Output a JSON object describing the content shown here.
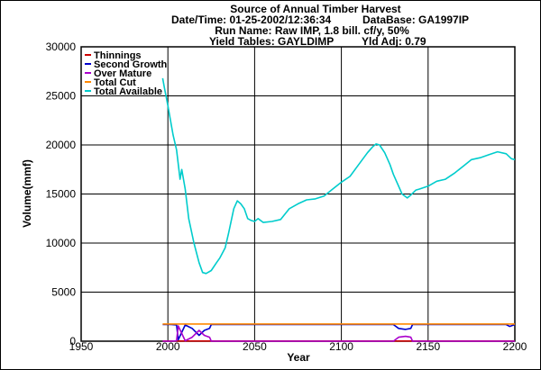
{
  "header": {
    "title": "Source of Annual Timber Harvest",
    "datetime": "Date/Time: 01-25-2002/12:36:34",
    "database": "DataBase: GA1997IP",
    "run_name": "Run Name: Raw IMP, 1.8 bill. cf/y, 50%",
    "yield_tables": "Yield Tables: GAYLDIMP",
    "yld_adj": "Yld Adj: 0.79"
  },
  "chart_data": {
    "type": "line",
    "title": "Source of Annual Timber Harvest",
    "xlabel": "Year",
    "ylabel": "Volume(mmf)",
    "xlim": [
      1950,
      2200
    ],
    "ylim": [
      0,
      30000
    ],
    "xticks": [
      1950,
      2000,
      2050,
      2100,
      2150,
      2200
    ],
    "yticks": [
      0,
      5000,
      10000,
      15000,
      20000,
      25000,
      30000
    ],
    "grid": true,
    "legend_position": "top-left",
    "series": [
      {
        "name": "Thinnings",
        "color": "#cc0000",
        "x": [
          1997,
          2200
        ],
        "y": [
          20,
          20
        ]
      },
      {
        "name": "Second Growth",
        "color": "#0000cc",
        "x": [
          1997,
          2002,
          2005,
          2006,
          2010,
          2014,
          2018,
          2021,
          2024,
          2025,
          2130,
          2133,
          2137,
          2140,
          2141,
          2195,
          2197,
          2200
        ],
        "y": [
          1700,
          1700,
          1650,
          150,
          1650,
          1300,
          600,
          1100,
          1300,
          1700,
          1700,
          1300,
          1200,
          1300,
          1700,
          1700,
          1500,
          1700
        ]
      },
      {
        "name": "Over Mature",
        "color": "#aa00cc",
        "x": [
          1997,
          2002,
          2005,
          2006,
          2010,
          2014,
          2018,
          2021,
          2024,
          2025,
          2050,
          2130,
          2133,
          2137,
          2140,
          2141,
          2200
        ],
        "y": [
          0,
          0,
          50,
          1550,
          50,
          400,
          1100,
          600,
          400,
          0,
          0,
          0,
          400,
          500,
          400,
          0,
          0
        ]
      },
      {
        "name": "Total Cut",
        "color": "#ff8800",
        "x": [
          1997,
          2200
        ],
        "y": [
          1750,
          1750
        ]
      },
      {
        "name": "Total Available",
        "color": "#00cccc",
        "x": [
          1997,
          1998,
          2000,
          2003,
          2005,
          2007,
          2008,
          2010,
          2012,
          2015,
          2018,
          2020,
          2022,
          2023,
          2025,
          2028,
          2030,
          2033,
          2035,
          2038,
          2040,
          2042,
          2044,
          2046,
          2048,
          2050,
          2052,
          2055,
          2060,
          2065,
          2070,
          2075,
          2080,
          2085,
          2090,
          2095,
          2100,
          2105,
          2110,
          2115,
          2118,
          2120,
          2122,
          2125,
          2128,
          2130,
          2133,
          2135,
          2138,
          2140,
          2143,
          2145,
          2150,
          2155,
          2160,
          2165,
          2170,
          2175,
          2180,
          2185,
          2190,
          2195,
          2198,
          2200
        ],
        "y": [
          26800,
          25800,
          24000,
          21000,
          19500,
          16500,
          17500,
          15500,
          12500,
          10000,
          8000,
          7000,
          6900,
          7000,
          7200,
          8000,
          8500,
          9500,
          11000,
          13500,
          14300,
          14000,
          13500,
          12500,
          12300,
          12200,
          12500,
          12100,
          12200,
          12400,
          13500,
          14000,
          14400,
          14500,
          14800,
          15500,
          16200,
          16800,
          18000,
          19200,
          19800,
          20100,
          20000,
          19200,
          18000,
          17000,
          15800,
          15000,
          14600,
          14900,
          15400,
          15500,
          15800,
          16300,
          16500,
          17100,
          17800,
          18500,
          18700,
          19000,
          19300,
          19100,
          18600,
          18500
        ]
      }
    ]
  }
}
